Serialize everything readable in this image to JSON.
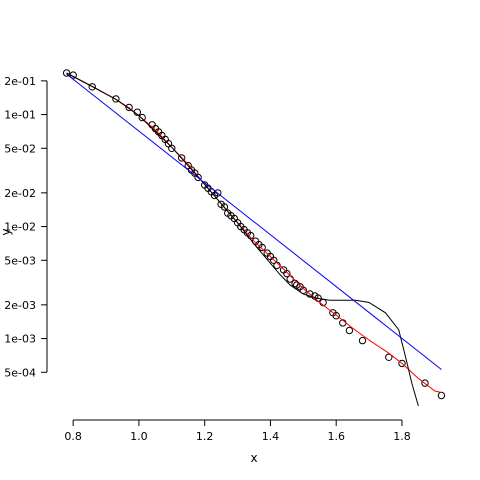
{
  "chart_data": {
    "type": "scatter",
    "title": "",
    "xlabel": "x",
    "ylabel": "y",
    "xlim": [
      0.76,
      1.94
    ],
    "ylim": [
      0.00025,
      0.32
    ],
    "y_scale": "log",
    "grid": false,
    "x_ticks": [
      {
        "value": 0.8,
        "label": "0.8"
      },
      {
        "value": 1.0,
        "label": "1.0"
      },
      {
        "value": 1.2,
        "label": "1.2"
      },
      {
        "value": 1.4,
        "label": "1.4"
      },
      {
        "value": 1.6,
        "label": "1.6"
      },
      {
        "value": 1.8,
        "label": "1.8"
      }
    ],
    "y_ticks": [
      {
        "value": 0.2,
        "label": "2e-01"
      },
      {
        "value": 0.1,
        "label": "1e-01"
      },
      {
        "value": 0.05,
        "label": "5e-02"
      },
      {
        "value": 0.02,
        "label": "2e-02"
      },
      {
        "value": 0.01,
        "label": "1e-02"
      },
      {
        "value": 0.005,
        "label": "5e-03"
      },
      {
        "value": 0.002,
        "label": "2e-03"
      },
      {
        "value": 0.001,
        "label": "1e-03"
      },
      {
        "value": 0.0005,
        "label": "5e-04"
      }
    ],
    "series": [
      {
        "kind": "points",
        "color": "#000000",
        "x": [
          0.78,
          0.8,
          0.858,
          0.93,
          0.97,
          0.995,
          1.01,
          1.04,
          1.05,
          1.06,
          1.07,
          1.08,
          1.09,
          1.1,
          1.13,
          1.15,
          1.16,
          1.17,
          1.18,
          1.2,
          1.21,
          1.22,
          1.23,
          1.24,
          1.25,
          1.26,
          1.27,
          1.28,
          1.29,
          1.3,
          1.31,
          1.32,
          1.33,
          1.34,
          1.355,
          1.365,
          1.375,
          1.39,
          1.4,
          1.41,
          1.42,
          1.44,
          1.45,
          1.46,
          1.475,
          1.48,
          1.49,
          1.5,
          1.52,
          1.535,
          1.545,
          1.56,
          1.59,
          1.6,
          1.62,
          1.64,
          1.68,
          1.76,
          1.8,
          1.87,
          1.92
        ],
        "y": [
          0.235,
          0.225,
          0.177,
          0.138,
          0.116,
          0.105,
          0.094,
          0.081,
          0.075,
          0.07,
          0.065,
          0.06,
          0.055,
          0.05,
          0.041,
          0.035,
          0.032,
          0.03,
          0.0275,
          0.0235,
          0.022,
          0.0205,
          0.019,
          0.02,
          0.0158,
          0.015,
          0.0132,
          0.0125,
          0.0118,
          0.0108,
          0.01,
          0.0094,
          0.0088,
          0.0083,
          0.0074,
          0.0069,
          0.0065,
          0.0058,
          0.0054,
          0.005,
          0.0045,
          0.0041,
          0.0038,
          0.0034,
          0.0031,
          0.003,
          0.0029,
          0.0027,
          0.0025,
          0.0024,
          0.0023,
          0.0021,
          0.0017,
          0.0016,
          0.00138,
          0.00118,
          0.00096,
          0.00068,
          0.0006,
          0.0004,
          0.00031
        ]
      },
      {
        "kind": "line",
        "color": "#ff0000",
        "x": [
          0.78,
          0.858,
          0.93,
          0.97,
          1.0,
          1.05,
          1.1,
          1.15,
          1.2,
          1.25,
          1.3,
          1.35,
          1.4,
          1.45,
          1.5,
          1.55,
          1.6,
          1.65,
          1.7,
          1.76,
          1.8,
          1.85,
          1.9,
          1.92
        ],
        "y": [
          0.235,
          0.178,
          0.137,
          0.115,
          0.098,
          0.073,
          0.051,
          0.036,
          0.0238,
          0.016,
          0.0108,
          0.0074,
          0.0054,
          0.0039,
          0.0028,
          0.0021,
          0.00162,
          0.00124,
          0.00097,
          0.00074,
          0.0006,
          0.00044,
          0.00034,
          0.00033
        ]
      },
      {
        "kind": "line",
        "color": "#000000",
        "x": [
          0.78,
          0.858,
          0.93,
          1.0,
          1.1,
          1.2,
          1.3,
          1.35,
          1.38,
          1.4,
          1.43,
          1.46,
          1.5,
          1.54,
          1.58,
          1.62,
          1.66,
          1.7,
          1.75,
          1.79,
          1.81,
          1.83,
          1.85
        ],
        "y": [
          0.235,
          0.178,
          0.137,
          0.098,
          0.051,
          0.0238,
          0.0108,
          0.007,
          0.0055,
          0.0047,
          0.0037,
          0.003,
          0.0025,
          0.0023,
          0.0022,
          0.0022,
          0.0022,
          0.0021,
          0.0017,
          0.0012,
          0.0007,
          0.0004,
          0.00025
        ]
      },
      {
        "kind": "line",
        "color": "#0000ff",
        "x": [
          0.78,
          1.92
        ],
        "y": [
          0.23,
          0.00053
        ]
      }
    ]
  }
}
